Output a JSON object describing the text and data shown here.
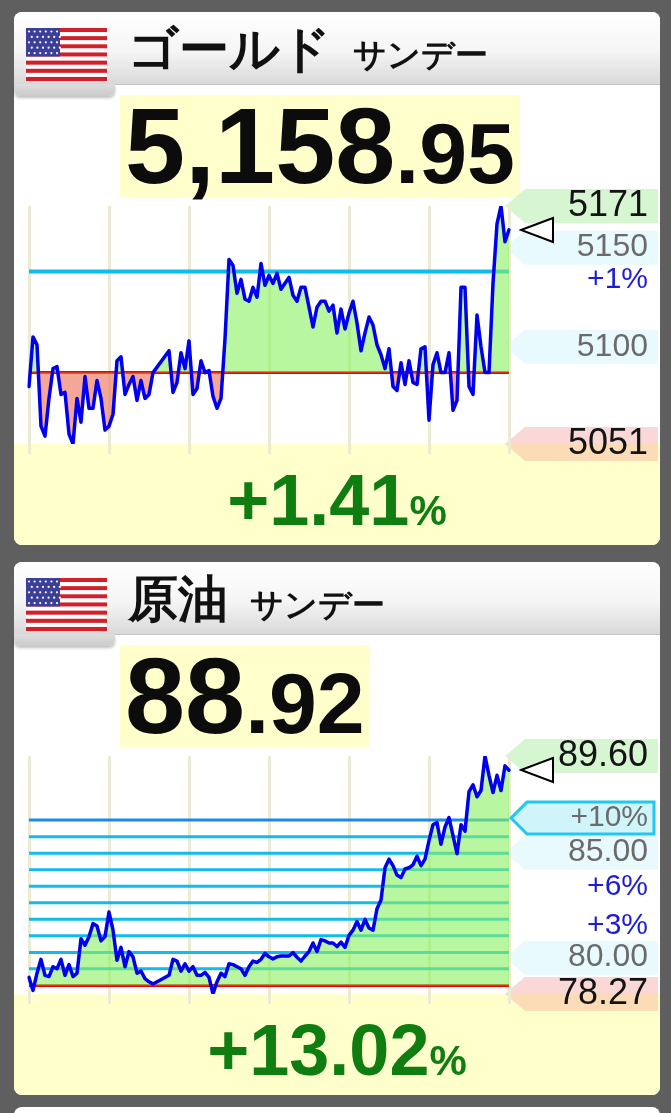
{
  "chart_data": [
    {
      "type": "line",
      "title": "ゴールド",
      "subtitle": "サンデー",
      "annotations": [
        "5,158.95",
        "+1.41%"
      ],
      "categories": [
        null,
        null,
        null,
        null,
        null,
        null,
        null,
        null,
        null,
        null,
        null,
        null,
        null,
        null,
        null,
        null,
        null,
        null,
        null,
        null,
        null,
        null,
        null,
        null,
        null,
        null,
        null,
        null,
        null,
        null,
        null,
        null,
        null,
        null,
        null,
        null,
        null,
        null,
        null,
        null,
        null,
        null,
        null,
        null,
        null,
        null,
        null,
        null,
        null,
        null,
        null,
        null,
        null,
        null,
        null,
        null,
        null,
        null,
        null,
        null,
        null,
        null,
        null,
        null,
        null,
        null,
        null,
        null,
        null,
        null,
        null,
        null,
        null,
        null,
        null,
        null,
        null,
        null,
        null,
        null,
        null,
        null,
        null,
        null,
        null,
        null,
        null,
        null,
        null,
        null,
        null,
        null,
        null,
        null,
        null,
        null,
        null,
        null,
        null,
        null,
        null,
        null,
        null,
        null,
        null,
        null,
        null,
        null,
        null,
        null,
        null,
        null,
        null,
        null,
        null,
        null,
        null,
        null,
        null,
        null,
        null
      ],
      "values": [
        5080,
        5105,
        5101,
        5060,
        5055,
        5074,
        5089,
        5090,
        5076,
        5077,
        5056,
        5051,
        5074,
        5062,
        5085,
        5069,
        5069,
        5083,
        5074,
        5058,
        5060,
        5066,
        5093,
        5095,
        5076,
        5081,
        5085,
        5073,
        5083,
        5074,
        5076,
        5087,
        null,
        null,
        null,
        5098,
        5077,
        5082,
        5097,
        5089,
        5103,
        5076,
        5079,
        5093,
        5087,
        5088,
        5075,
        5069,
        5074,
        5104,
        5144,
        5141,
        5127,
        5134,
        5124,
        5123,
        5130,
        5125,
        5142,
        5131,
        5136,
        5132,
        5137,
        5129,
        5132,
        5135,
        5126,
        5123,
        5130,
        5130,
        5120,
        5110,
        5120,
        5123,
        5123,
        5118,
        5121,
        5107,
        5119,
        5109,
        5117,
        5123,
        5112,
        5098,
        5107,
        5115,
        5111,
        5101,
        5096,
        5089,
        5099,
        5080,
        5078,
        5092,
        5081,
        5093,
        5082,
        5081,
        5099,
        5100,
        5063,
        5091,
        5097,
        5087,
        5087,
        5097,
        5068,
        5073,
        5130,
        5130,
        5080,
        5076,
        5116,
        5100,
        5087,
        5087,
        5132,
        5162,
        5171,
        5153,
        5159
      ],
      "color": "#0000ee",
      "ylim": [
        5051,
        5171
      ],
      "yticks": [
        5051,
        5100,
        5150,
        5171
      ],
      "ref_lines": [
        {
          "axis": "y",
          "value": 5087,
          "color": "#ee0000"
        }
      ],
      "bands": [
        {
          "axis": "y",
          "from": 5137,
          "to": 5139,
          "label": "+1%",
          "color": "#11bbee"
        }
      ],
      "grid": "x",
      "tick_labels": "y"
    },
    {
      "type": "line",
      "title": "原油",
      "subtitle": "サンデー",
      "annotations": [
        "88.92",
        "+13.02%"
      ],
      "categories": [
        null,
        null,
        null,
        null,
        null,
        null,
        null,
        null,
        null,
        null,
        null,
        null,
        null,
        null,
        null,
        null,
        null,
        null,
        null,
        null,
        null,
        null,
        null,
        null,
        null,
        null,
        null,
        null,
        null,
        null,
        null,
        null,
        null,
        null,
        null,
        null,
        null,
        null,
        null,
        null,
        null,
        null,
        null,
        null,
        null,
        null,
        null,
        null,
        null,
        null,
        null,
        null,
        null,
        null,
        null,
        null,
        null,
        null,
        null,
        null,
        null,
        null,
        null,
        null,
        null,
        null,
        null,
        null,
        null,
        null,
        null,
        null,
        null,
        null,
        null,
        null,
        null,
        null,
        null,
        null,
        null,
        null,
        null,
        null,
        null,
        null,
        null,
        null,
        null,
        null,
        null,
        null,
        null,
        null,
        null,
        null,
        null,
        null,
        null,
        null,
        null,
        null,
        null,
        null,
        null,
        null,
        null,
        null,
        null,
        null,
        null,
        null,
        null,
        null,
        null,
        null,
        null,
        null,
        null,
        null,
        null
      ],
      "values": [
        79.06,
        78.44,
        79.26,
        79.92,
        79.16,
        79.1,
        79.57,
        79.47,
        79.92,
        79.16,
        79.67,
        79.1,
        79.26,
        80.9,
        80.59,
        81.0,
        81.62,
        81.51,
        80.8,
        81.0,
        82.17,
        81.31,
        79.88,
        80.49,
        79.57,
        80.29,
        80.04,
        79.26,
        79.36,
        79.0,
        78.85,
        78.75,
        null,
        null,
        null,
        79.16,
        79.92,
        79.84,
        79.36,
        79.71,
        79.36,
        79.57,
        79.16,
        79.16,
        79.3,
        79.06,
        78.27,
        78.85,
        79.26,
        79.1,
        79.71,
        79.67,
        79.57,
        79.47,
        79.16,
        79.57,
        79.84,
        79.77,
        79.92,
        80.2,
        80.04,
        79.94,
        80.04,
        80.08,
        80.08,
        80.08,
        80.24,
        80.02,
        79.84,
        80.08,
        80.29,
        80.7,
        80.29,
        80.86,
        80.8,
        80.7,
        80.7,
        80.53,
        80.74,
        80.49,
        81.06,
        81.31,
        81.72,
        81.31,
        81.82,
        81.41,
        81.31,
        82.33,
        82.74,
        84.28,
        84.69,
        84.38,
        83.93,
        83.81,
        84.22,
        84.28,
        84.42,
        84.83,
        84.38,
        84.69,
        85.57,
        86.33,
        86.43,
        85.4,
        86.22,
        86.67,
        85.81,
        84.95,
        86.33,
        86.02,
        87.9,
        88.23,
        87.66,
        87.96,
        89.6,
        88.68,
        87.86,
        88.68,
        87.96,
        89.13,
        88.92
      ],
      "color": "#0000ee",
      "ylim": [
        78.27,
        89.6
      ],
      "yticks": [
        78.27,
        {
          "value": 80,
          "label": "80.00"
        },
        {
          "value": 85,
          "label": "85.00"
        },
        {
          "value": 89.6,
          "label": "89.60"
        }
      ],
      "ref_lines": [
        {
          "axis": "y",
          "value": 78.68,
          "color": "#ee0000"
        }
      ],
      "bands": [
        {
          "axis": "y",
          "from": 79.4,
          "to": 79.54,
          "color": "#11bbee"
        },
        {
          "axis": "y",
          "from": 80.18,
          "to": 80.32,
          "color": "#11bbee"
        },
        {
          "axis": "y",
          "from": 80.97,
          "to": 81.11,
          "label": "+3%",
          "color": "#11bbee"
        },
        {
          "axis": "y",
          "from": 81.76,
          "to": 81.9,
          "color": "#11bbee"
        },
        {
          "axis": "y",
          "from": 82.54,
          "to": 82.68,
          "color": "#11bbee"
        },
        {
          "axis": "y",
          "from": 83.33,
          "to": 83.47,
          "label": "+6%",
          "color": "#11bbee"
        },
        {
          "axis": "y",
          "from": 84.12,
          "to": 84.26,
          "color": "#11bbee"
        },
        {
          "axis": "y",
          "from": 84.9,
          "to": 85.04,
          "color": "#11bbee"
        },
        {
          "axis": "y",
          "from": 85.69,
          "to": 85.83,
          "color": "#11bbee"
        },
        {
          "axis": "y",
          "from": 86.48,
          "to": 86.62,
          "label": "+10%",
          "color": "#1e88ee"
        }
      ],
      "grid": "x",
      "tick_labels": "y"
    }
  ]
}
